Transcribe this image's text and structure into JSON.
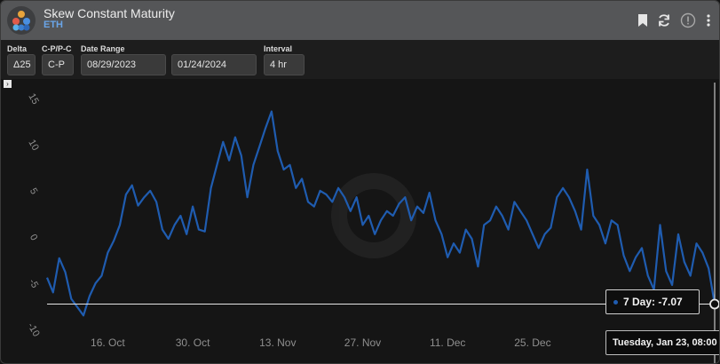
{
  "app": {
    "title": "Skew Constant Maturity",
    "subtitle": "ETH"
  },
  "toolbar_icons": [
    "bookmark-icon",
    "refresh-icon",
    "info-icon",
    "more-vertical-icon"
  ],
  "controls": {
    "delta": {
      "label": "Delta",
      "value": "Δ25"
    },
    "type": {
      "label": "C-P/P-C",
      "value": "C-P"
    },
    "date_range": {
      "label": "Date Range",
      "start": "08/29/2023",
      "end": "01/24/2024"
    },
    "interval": {
      "label": "Interval",
      "value": "4 hr"
    }
  },
  "expander_glyph": "›",
  "colors": {
    "line": "#1f5cb0",
    "crosshair": "#e6e6e6",
    "axis_text": "#8f8f8f",
    "titlebar": "#555658"
  },
  "tooltip": {
    "label": "7 Day:",
    "value": "-7.07",
    "date": "Tuesday, Jan 23, 08:00"
  },
  "chart_data": {
    "type": "line",
    "ylim": [
      -10,
      15
    ],
    "yticks": [
      -10,
      -5,
      0,
      5,
      10,
      15
    ],
    "y_tick_labels": [
      "-10",
      "-5",
      "0",
      "5",
      "10",
      "15"
    ],
    "x_start": "2023-10-06",
    "x_end": "2024-01-24",
    "xticks": [
      "2023-10-16",
      "2023-10-30",
      "2023-11-13",
      "2023-11-27",
      "2023-12-11",
      "2023-12-25"
    ],
    "x_tick_labels": [
      "16. Oct",
      "30. Oct",
      "13. Nov",
      "27. Nov",
      "11. Dec",
      "25. Dec"
    ],
    "grid": false,
    "series": [
      {
        "name": "7 Day",
        "x": [
          "2023-10-06",
          "2023-10-07",
          "2023-10-08",
          "2023-10-09",
          "2023-10-10",
          "2023-10-11",
          "2023-10-12",
          "2023-10-13",
          "2023-10-14",
          "2023-10-15",
          "2023-10-16",
          "2023-10-17",
          "2023-10-18",
          "2023-10-19",
          "2023-10-20",
          "2023-10-21",
          "2023-10-22",
          "2023-10-23",
          "2023-10-24",
          "2023-10-25",
          "2023-10-26",
          "2023-10-27",
          "2023-10-28",
          "2023-10-29",
          "2023-10-30",
          "2023-10-31",
          "2023-11-01",
          "2023-11-02",
          "2023-11-03",
          "2023-11-04",
          "2023-11-05",
          "2023-11-06",
          "2023-11-07",
          "2023-11-08",
          "2023-11-09",
          "2023-11-10",
          "2023-11-11",
          "2023-11-12",
          "2023-11-13",
          "2023-11-14",
          "2023-11-15",
          "2023-11-16",
          "2023-11-17",
          "2023-11-18",
          "2023-11-19",
          "2023-11-20",
          "2023-11-21",
          "2023-11-22",
          "2023-11-23",
          "2023-11-24",
          "2023-11-25",
          "2023-11-26",
          "2023-11-27",
          "2023-11-28",
          "2023-11-29",
          "2023-11-30",
          "2023-12-01",
          "2023-12-02",
          "2023-12-03",
          "2023-12-04",
          "2023-12-05",
          "2023-12-06",
          "2023-12-07",
          "2023-12-08",
          "2023-12-09",
          "2023-12-10",
          "2023-12-11",
          "2023-12-12",
          "2023-12-13",
          "2023-12-14",
          "2023-12-15",
          "2023-12-16",
          "2023-12-17",
          "2023-12-18",
          "2023-12-19",
          "2023-12-20",
          "2023-12-21",
          "2023-12-22",
          "2023-12-23",
          "2023-12-24",
          "2023-12-25",
          "2023-12-26",
          "2023-12-27",
          "2023-12-28",
          "2023-12-29",
          "2023-12-30",
          "2023-12-31",
          "2024-01-01",
          "2024-01-02",
          "2024-01-03",
          "2024-01-04",
          "2024-01-05",
          "2024-01-06",
          "2024-01-07",
          "2024-01-08",
          "2024-01-09",
          "2024-01-10",
          "2024-01-11",
          "2024-01-12",
          "2024-01-13",
          "2024-01-14",
          "2024-01-15",
          "2024-01-16",
          "2024-01-17",
          "2024-01-18",
          "2024-01-19",
          "2024-01-20",
          "2024-01-21",
          "2024-01-22",
          "2024-01-23",
          "2024-01-24"
        ],
        "values": [
          -4.2,
          -5.8,
          -2.1,
          -3.6,
          -6.5,
          -7.4,
          -8.3,
          -6.2,
          -4.8,
          -4.0,
          -1.5,
          -0.2,
          1.5,
          4.8,
          5.8,
          3.6,
          4.5,
          5.2,
          4.0,
          1.0,
          0.0,
          1.5,
          2.5,
          0.5,
          3.5,
          1.0,
          0.8,
          5.5,
          8.0,
          10.5,
          8.5,
          11.0,
          9.0,
          4.5,
          8.0,
          10.0,
          12.0,
          13.8,
          9.5,
          7.5,
          8.0,
          5.5,
          6.5,
          4.0,
          3.5,
          5.2,
          4.8,
          4.0,
          5.5,
          4.5,
          3.0,
          4.5,
          1.5,
          2.5,
          0.5,
          2.0,
          3.0,
          2.5,
          3.8,
          4.5,
          2.0,
          3.5,
          2.8,
          5.0,
          2.0,
          0.5,
          -2.0,
          -0.5,
          -1.5,
          1.0,
          0.0,
          -3.0,
          1.5,
          2.0,
          3.5,
          2.5,
          1.0,
          4.0,
          3.0,
          2.0,
          0.5,
          -1.0,
          0.5,
          1.2,
          4.5,
          5.5,
          4.5,
          3.0,
          1.0,
          7.5,
          2.5,
          1.5,
          -0.5,
          2.0,
          1.5,
          -1.8,
          -3.5,
          -2.0,
          -1.0,
          -4.0,
          -5.5,
          1.5,
          -3.5,
          -5.0,
          0.5,
          -2.5,
          -4.0,
          -0.5,
          -1.5,
          -3.2,
          -7.07
        ]
      }
    ]
  }
}
